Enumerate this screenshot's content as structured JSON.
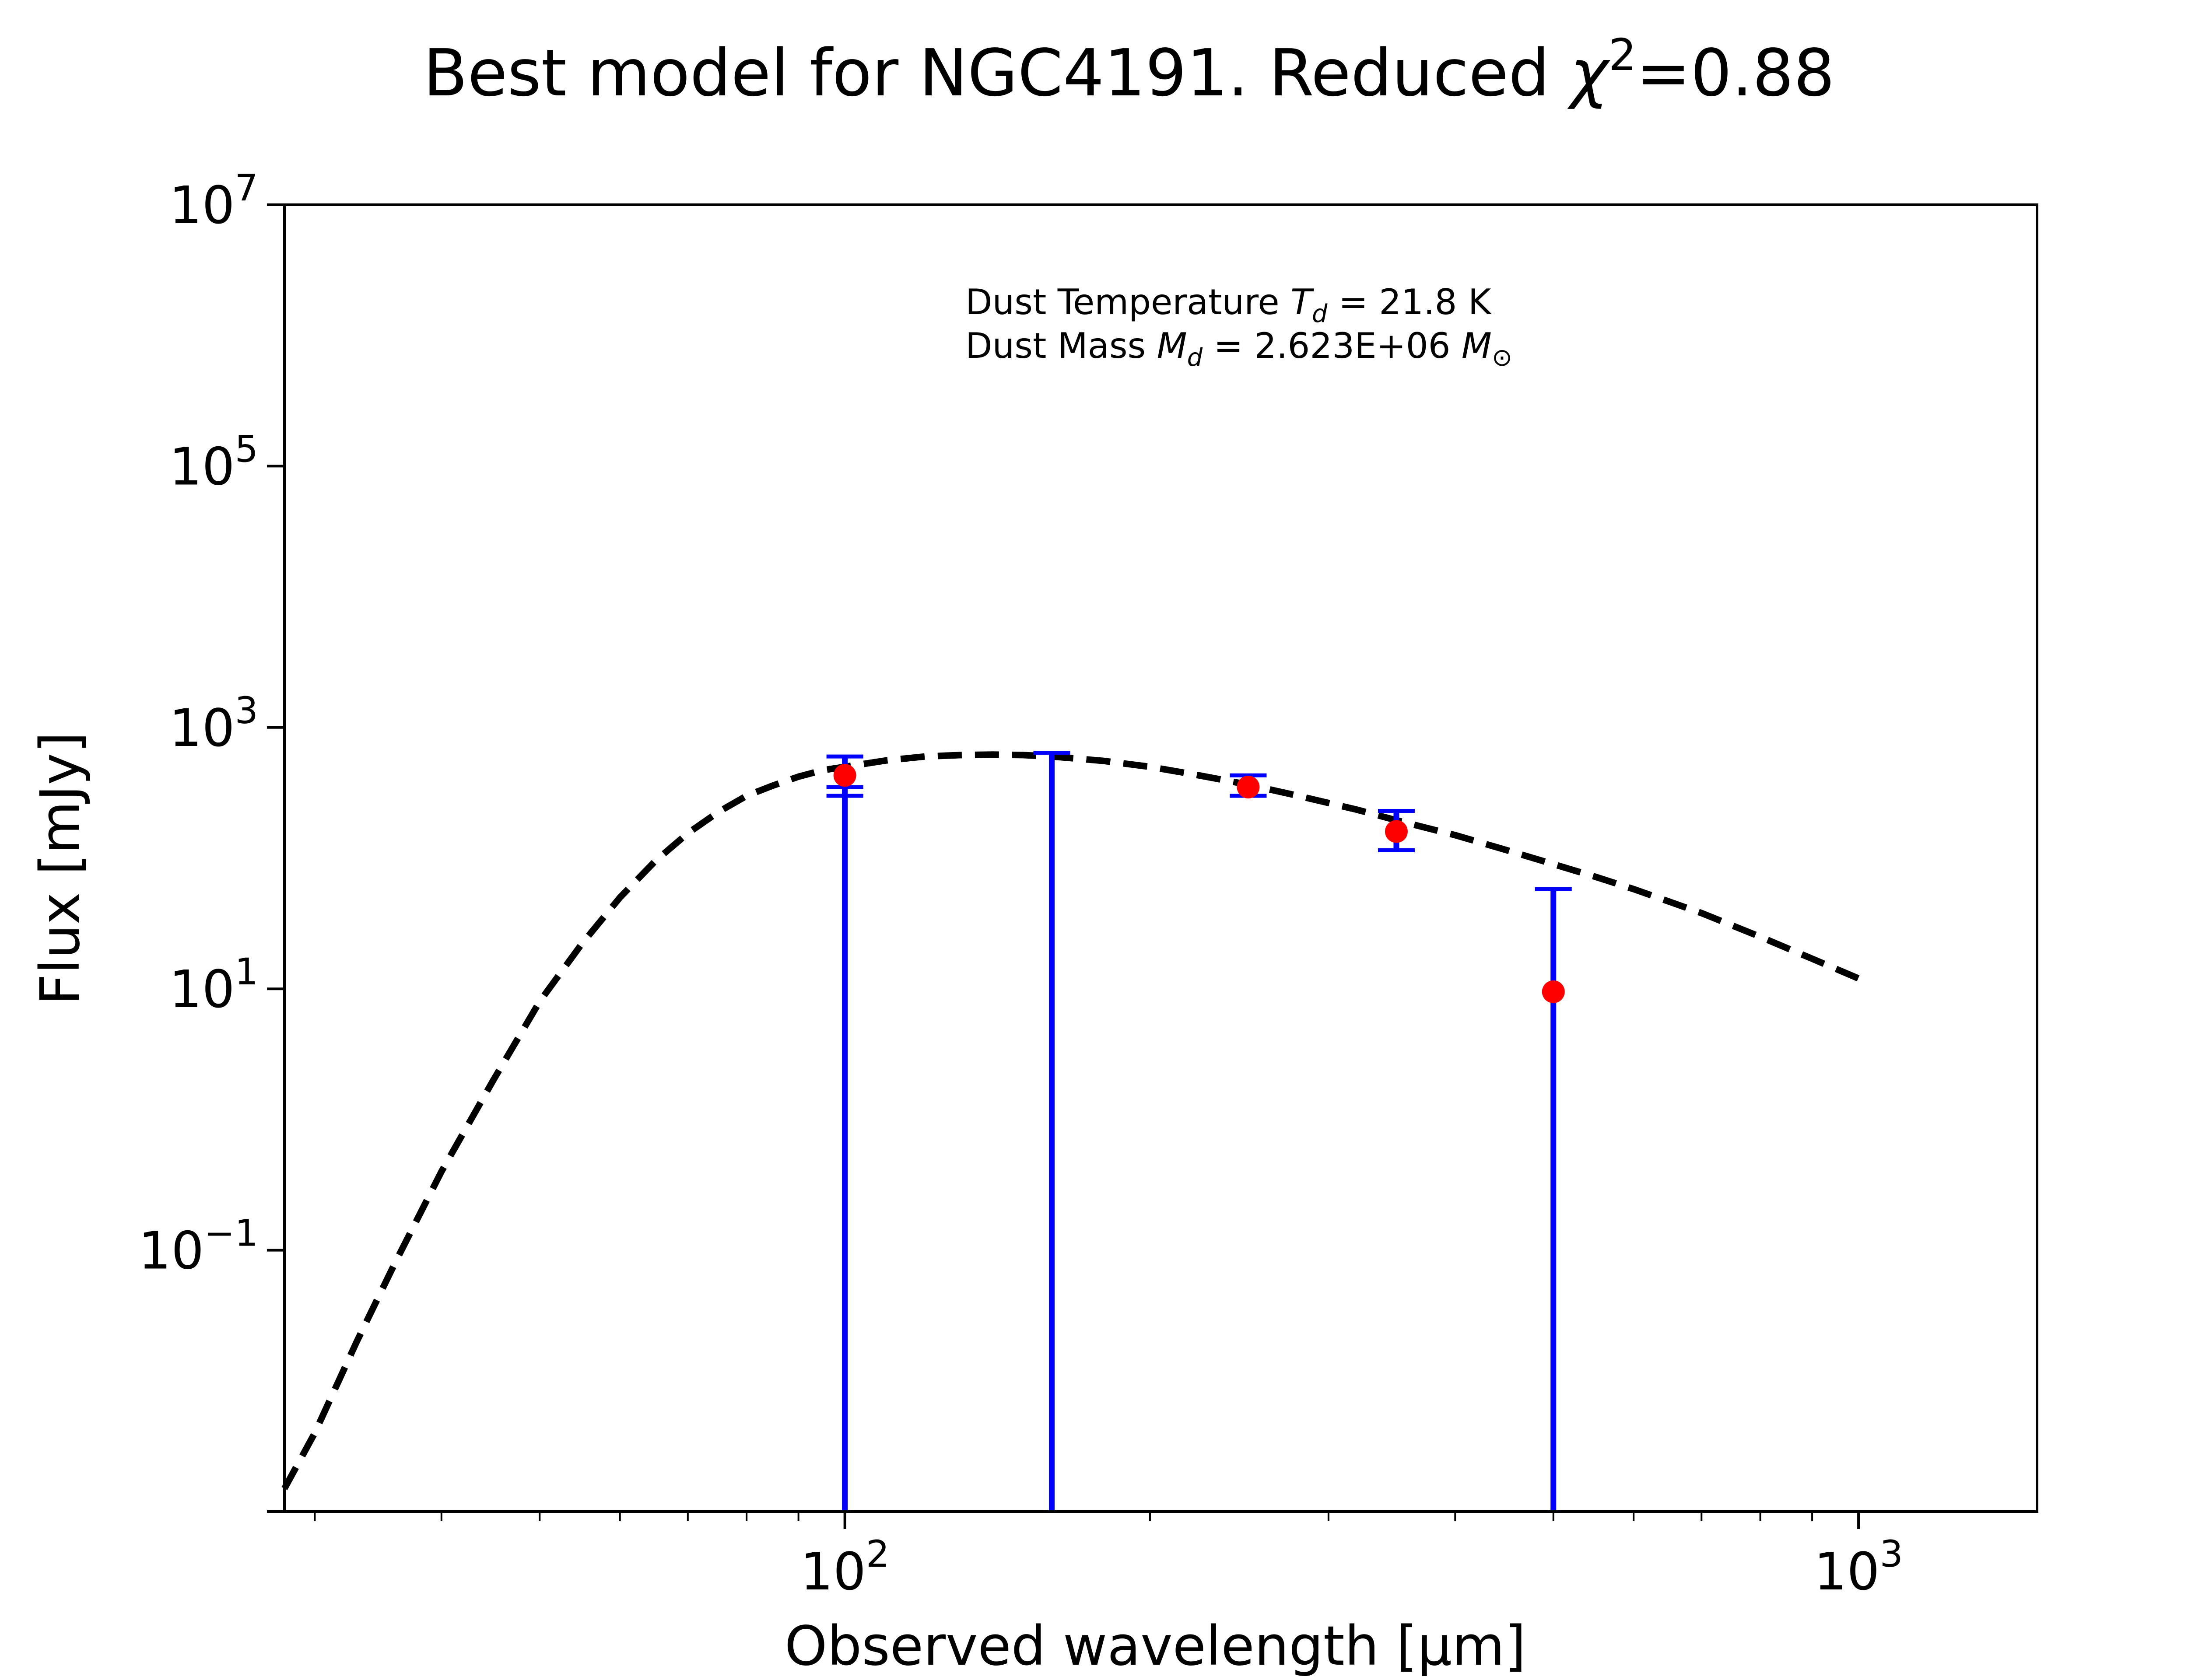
{
  "chart_data": {
    "type": "scatter",
    "title": "Best model for NGC4191. Reduced χ²=0.88",
    "title_parts": {
      "main": "Best model for NGC4191. Reduced ",
      "chi": "χ",
      "sup": "2",
      "tail": "=0.88"
    },
    "xlabel": "Observed wavelength [μm]",
    "ylabel": "Flux [mJy]",
    "xscale": "log",
    "yscale": "log",
    "xlim": [
      28,
      1500
    ],
    "ylim": [
      0.001,
      10000000
    ],
    "grid": false,
    "x_ticks": [
      {
        "value": 100,
        "base": "10",
        "exp": "2"
      },
      {
        "value": 1000,
        "base": "10",
        "exp": "3"
      }
    ],
    "y_ticks": [
      {
        "value": 0.1,
        "base": "10",
        "exp": "−1"
      },
      {
        "value": 10,
        "base": "10",
        "exp": "1"
      },
      {
        "value": 1000,
        "base": "10",
        "exp": "3"
      },
      {
        "value": 100000,
        "base": "10",
        "exp": "5"
      },
      {
        "value": 10000000,
        "base": "10",
        "exp": "7"
      }
    ],
    "annotations": {
      "line1": {
        "prefix": "Dust Temperature ",
        "sym": "T",
        "sub": "d",
        "suffix": " = 21.8 K"
      },
      "line2": {
        "prefix": "Dust Mass ",
        "sym": "M",
        "sub": "d",
        "suffix": " = 2.623E+06 ",
        "unit": "M",
        "unit_sub": "⊙"
      }
    },
    "series": [
      {
        "kind": "model-line",
        "style": "dashed",
        "color": "#000000",
        "x": [
          28,
          30,
          33,
          36,
          40,
          45,
          50,
          55,
          60,
          65,
          70,
          75,
          80,
          85,
          90,
          95,
          100,
          110,
          120,
          130,
          140,
          150,
          160,
          180,
          200,
          220,
          250,
          280,
          320,
          350,
          400,
          450,
          500,
          550,
          600,
          700,
          800,
          900,
          1000
        ],
        "y": [
          0.0015,
          0.004,
          0.02,
          0.08,
          0.4,
          2.0,
          8.0,
          22,
          50,
          95,
          155,
          225,
          300,
          360,
          420,
          470,
          500,
          560,
          600,
          615,
          620,
          615,
          600,
          555,
          500,
          440,
          365,
          300,
          235,
          195,
          150,
          115,
          90,
          72,
          58,
          38,
          25,
          17,
          12
        ]
      },
      {
        "kind": "data",
        "color": "#ff0000",
        "errcolor": "#0000ff",
        "points": [
          {
            "x": 100,
            "y": 430,
            "ylo": 300,
            "yhi": 600
          },
          {
            "x": 250,
            "y": 350,
            "ylo": 300,
            "yhi": 430
          },
          {
            "x": 350,
            "y": 160,
            "ylo": 115,
            "yhi": 230
          },
          {
            "x": 500,
            "y": 9.5,
            "ylo": 0.001,
            "yhi": 58
          }
        ]
      },
      {
        "kind": "upper-limit",
        "color": "#0000ff",
        "points": [
          {
            "x": 100,
            "yhi": 350,
            "ylo": 0.001
          },
          {
            "x": 160,
            "yhi": 640,
            "ylo": 0.001
          }
        ]
      }
    ]
  }
}
